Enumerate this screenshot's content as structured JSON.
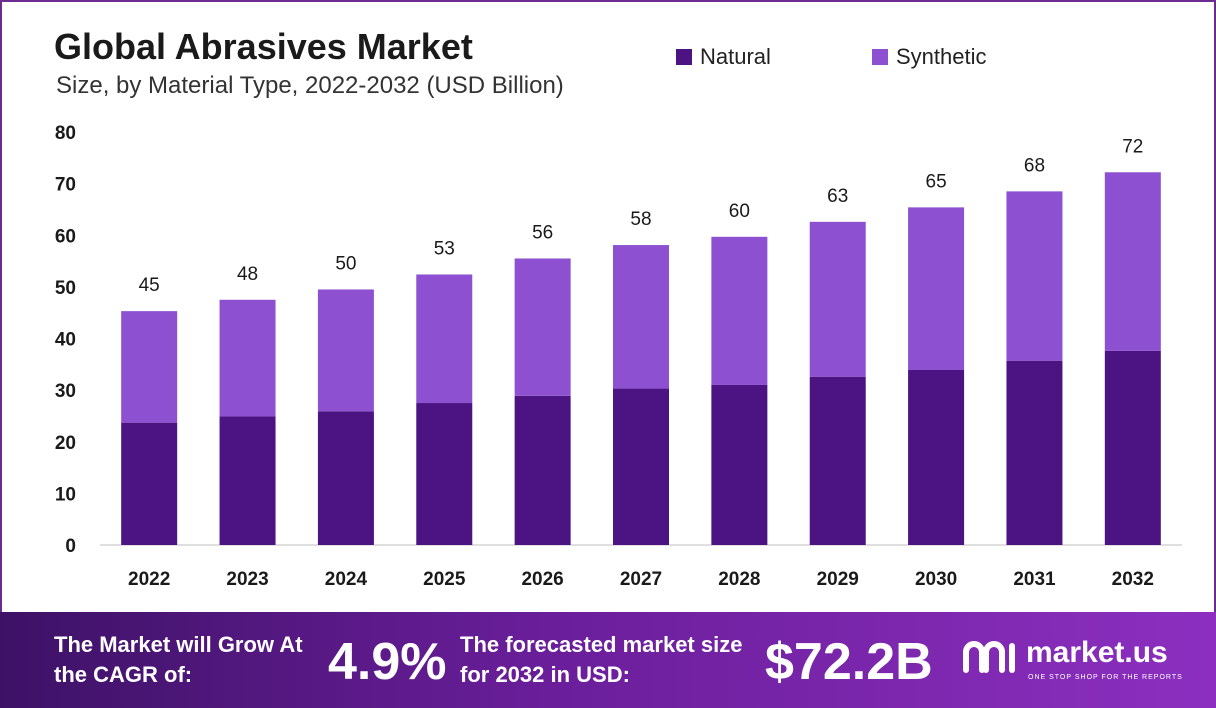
{
  "header": {
    "title": "Global Abrasives Market",
    "subtitle": "Size, by Material Type, 2022-2032 (USD Billion)"
  },
  "legend": [
    {
      "label": "Natural",
      "color": "#4b1482"
    },
    {
      "label": "Synthetic",
      "color": "#8d50d1"
    }
  ],
  "chart_data": {
    "type": "bar",
    "stacked": true,
    "title": "Global Abrasives Market",
    "subtitle": "Size, by Material Type, 2022-2032 (USD Billion)",
    "categories": [
      "2022",
      "2023",
      "2024",
      "2025",
      "2026",
      "2027",
      "2028",
      "2029",
      "2030",
      "2031",
      "2032"
    ],
    "series": [
      {
        "name": "Natural",
        "color": "#4b1482",
        "values": [
          23.7,
          24.9,
          25.9,
          27.5,
          28.9,
          30.3,
          31.0,
          32.6,
          33.9,
          35.7,
          37.6
        ]
      },
      {
        "name": "Synthetic",
        "color": "#8d50d1",
        "values": [
          21.6,
          22.6,
          23.6,
          24.9,
          26.6,
          27.8,
          28.7,
          30.0,
          31.5,
          32.8,
          34.6
        ]
      }
    ],
    "totals_labels": [
      "45",
      "48",
      "50",
      "53",
      "56",
      "58",
      "60",
      "63",
      "65",
      "68",
      "72"
    ],
    "ylim": [
      0,
      80
    ],
    "yticks": [
      "0",
      "10",
      "20",
      "30",
      "40",
      "50",
      "60",
      "70",
      "80"
    ],
    "xlabel": "",
    "ylabel": "",
    "grid": false,
    "legend_position": "top-right"
  },
  "footer": {
    "cagr_label": "The Market will Grow At the CAGR of:",
    "cagr_value": "4.9%",
    "forecast_label": "The forecasted market size for 2032 in USD:",
    "forecast_value": "$72.2B",
    "brand_name": "market.us",
    "brand_tagline": "ONE STOP SHOP FOR THE REPORTS",
    "gradient_start": "#3d1266",
    "gradient_end": "#8c2fc0"
  }
}
